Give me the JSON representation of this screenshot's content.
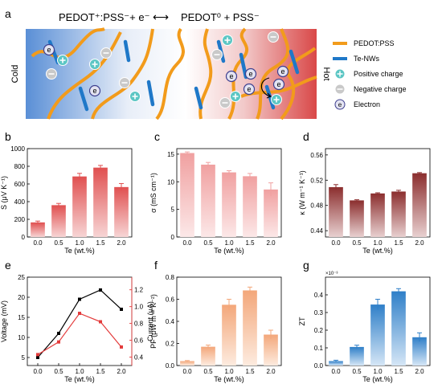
{
  "panel_a": {
    "letter": "a",
    "equation_left": "PEDOT⁺:PSS⁻+ e⁻",
    "equation_arrow": "⟷",
    "equation_right": "PEDOT⁰ + PSS⁻",
    "cold_label": "Cold",
    "hot_label": "Hot",
    "electron_symbol": "e",
    "legend": [
      {
        "label": "PEDOT:PSS",
        "icon": "orange-line",
        "color": "#F29B1B"
      },
      {
        "label": "Te-NWs",
        "icon": "blue-line",
        "color": "#1F78C8"
      },
      {
        "label": "Positive charge",
        "icon": "plus-circle",
        "color": "#5CC6C4"
      },
      {
        "label": "Negative charge",
        "icon": "minus-circle",
        "color": "#C9C9C9"
      },
      {
        "label": "Electron",
        "icon": "electron-circle",
        "color": "#3E3F8F"
      }
    ]
  },
  "chart_data": [
    {
      "id": "b",
      "type": "bar",
      "letter": "b",
      "categories": [
        "0.0",
        "0.5",
        "1.0",
        "1.5",
        "2.0"
      ],
      "values": [
        165,
        360,
        685,
        785,
        565
      ],
      "errors": [
        15,
        20,
        35,
        25,
        40
      ],
      "xlabel": "Te (wt.%)",
      "ylabel": "S (μV K⁻¹)",
      "ylim": [
        0,
        1000
      ],
      "yticks": [
        0,
        200,
        400,
        600,
        800,
        1000
      ],
      "color": "#E05050",
      "bottom_color": "#F7D5D5"
    },
    {
      "id": "c",
      "type": "bar",
      "letter": "c",
      "categories": [
        "0.0",
        "0.5",
        "1.0",
        "1.5",
        "2.0"
      ],
      "values": [
        15.2,
        13.1,
        11.7,
        11.0,
        8.6
      ],
      "errors": [
        0.2,
        0.4,
        0.3,
        0.5,
        1.2
      ],
      "xlabel": "Te (wt.%)",
      "ylabel": "σ (mS cm⁻¹)",
      "ylim": [
        0,
        16
      ],
      "yticks": [
        0,
        5,
        10,
        15
      ],
      "color": "#F0A0A0",
      "bottom_color": "#FCE8E8"
    },
    {
      "id": "d",
      "type": "bar",
      "letter": "d",
      "categories": [
        "0.0",
        "0.5",
        "1.0",
        "1.5",
        "2.0"
      ],
      "values": [
        0.509,
        0.488,
        0.499,
        0.502,
        0.531
      ],
      "errors": [
        0.004,
        0.001,
        0.001,
        0.002,
        0.001
      ],
      "xlabel": "Te (wt.%)",
      "ylabel": "κ (W m⁻¹ K⁻¹)",
      "ylim": [
        0.43,
        0.57
      ],
      "yticks": [
        0.44,
        0.48,
        0.52,
        0.56
      ],
      "color": "#8B2E2E",
      "bottom_color": "#E8D0D0"
    },
    {
      "id": "e",
      "type": "line",
      "letter": "e",
      "categories": [
        "0.0",
        "0.5",
        "1.0",
        "1.5",
        "2.0"
      ],
      "x": [
        0.0,
        0.5,
        1.0,
        1.5,
        2.0
      ],
      "series": [
        {
          "name": "Voltage",
          "values": [
            5,
            11,
            19.5,
            21.8,
            17
          ],
          "axis": "left",
          "color": "#000000"
        },
        {
          "name": "Current",
          "values": [
            0.43,
            0.58,
            0.92,
            0.82,
            0.52
          ],
          "axis": "right",
          "color": "#E33B3B"
        }
      ],
      "xlabel": "Te (wt.%)",
      "ylabel": "Voltage (mV)",
      "y2label": "Current (μA)",
      "ylim": [
        3,
        25
      ],
      "yticks": [
        5,
        10,
        15,
        20,
        25
      ],
      "y2lim": [
        0.3,
        1.35
      ],
      "y2ticks": [
        0.4,
        0.6,
        0.8,
        1.0,
        1.2
      ]
    },
    {
      "id": "f",
      "type": "bar",
      "letter": "f",
      "categories": [
        "0.0",
        "0.5",
        "1.0",
        "1.5",
        "2.0"
      ],
      "values": [
        0.04,
        0.17,
        0.55,
        0.68,
        0.28
      ],
      "errors": [
        0.005,
        0.015,
        0.05,
        0.03,
        0.04
      ],
      "xlabel": "Te (wt.%)",
      "ylabel": "PF (μW m⁻¹ K⁻²)",
      "ylim": [
        0,
        0.8
      ],
      "yticks": [
        0.0,
        0.2,
        0.4,
        0.6,
        0.8
      ],
      "color": "#F3A77A",
      "bottom_color": "#FDEBDF"
    },
    {
      "id": "g",
      "type": "bar",
      "letter": "g",
      "categories": [
        "0.0",
        "0.5",
        "1.0",
        "1.5",
        "2.0"
      ],
      "values": [
        0.025,
        0.105,
        0.345,
        0.42,
        0.16
      ],
      "errors": [
        0.005,
        0.01,
        0.03,
        0.015,
        0.025
      ],
      "xlabel": "Te (wt.%)",
      "ylabel": "ZT",
      "multiplier": "×10⁻³",
      "ylim": [
        0,
        0.5
      ],
      "yticks": [
        0.0,
        0.1,
        0.2,
        0.3,
        0.4
      ],
      "color": "#2F7FC8",
      "bottom_color": "#D5E6F6"
    }
  ]
}
